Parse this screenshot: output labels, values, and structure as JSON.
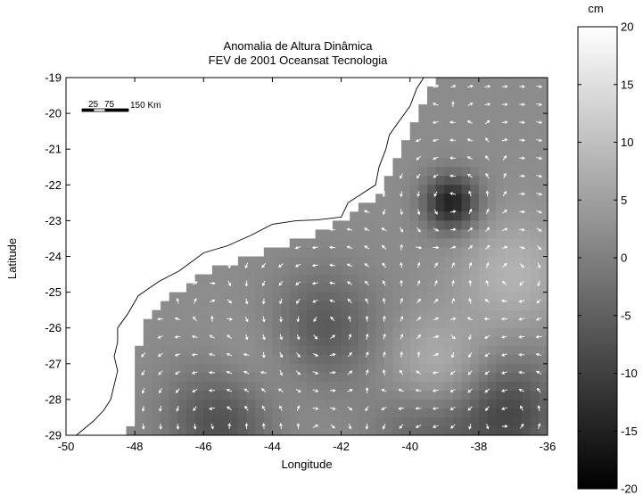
{
  "figure": {
    "title_line1": "Anomalia de Altura Dinâmica",
    "title_line2": "FEV de 2001   Oceansat Tecnologia",
    "xlabel": "Longitude",
    "ylabel": "Latitude",
    "colorbar_unit": "cm",
    "scale_bar_labels": [
      "25",
      "75"
    ],
    "scale_bar_unit_label": "150 Km"
  },
  "chart_data": {
    "type": "heatmap",
    "title": "Anomalia de Altura Dinâmica — FEV de 2001   Oceansat Tecnologia",
    "xlabel": "Longitude",
    "ylabel": "Latitude",
    "xlim": [
      -50,
      -36
    ],
    "ylim": [
      -29,
      -19
    ],
    "x_ticks": [
      -50,
      -48,
      -46,
      -44,
      -42,
      -40,
      -38,
      -36
    ],
    "y_ticks": [
      -19,
      -20,
      -21,
      -22,
      -23,
      -24,
      -25,
      -26,
      -27,
      -28,
      -29
    ],
    "x_tick_labels": [
      "-50",
      "-48",
      "-46",
      "-44",
      "-42",
      "-40",
      "-38",
      "-36"
    ],
    "y_tick_labels": [
      "-19",
      "-20",
      "-21",
      "-22",
      "-23",
      "-24",
      "-25",
      "-26",
      "-27",
      "-28",
      "-29"
    ],
    "colorbar": {
      "label": "cm",
      "range": [
        -20,
        20
      ],
      "ticks": [
        20,
        15,
        10,
        5,
        0,
        -5,
        -10,
        -15,
        -20
      ],
      "tick_labels": [
        "20",
        "15",
        "10",
        "5",
        "0",
        "-5",
        "-10",
        "-15",
        "-20"
      ],
      "colormap": "gray"
    },
    "features": [
      {
        "type": "cyclonic eddy",
        "lon": -38.8,
        "lat": -22.5,
        "value_cm": -17
      },
      {
        "type": "low",
        "lon": -42.5,
        "lat": -26.0,
        "value_cm": -8
      },
      {
        "type": "low",
        "lon": -45.5,
        "lat": -28.6,
        "value_cm": -10
      },
      {
        "type": "low",
        "lon": -39.5,
        "lat": -28.6,
        "value_cm": -9
      },
      {
        "type": "low",
        "lon": -37.2,
        "lat": -28.4,
        "value_cm": -11
      },
      {
        "type": "high",
        "lon": -39.2,
        "lat": -27.5,
        "value_cm": 9
      },
      {
        "type": "high",
        "lon": -37.0,
        "lat": -24.5,
        "value_cm": 6
      },
      {
        "type": "high",
        "lon": -44.5,
        "lat": -27.2,
        "value_cm": 3
      }
    ],
    "coastline": [
      [
        -49.7,
        -29.0
      ],
      [
        -49.2,
        -28.6
      ],
      [
        -48.9,
        -28.3
      ],
      [
        -48.7,
        -28.0
      ],
      [
        -48.6,
        -27.6
      ],
      [
        -48.5,
        -27.2
      ],
      [
        -48.6,
        -26.8
      ],
      [
        -48.5,
        -26.4
      ],
      [
        -48.5,
        -26.0
      ],
      [
        -48.2,
        -25.6
      ],
      [
        -47.9,
        -25.1
      ],
      [
        -47.3,
        -24.7
      ],
      [
        -46.7,
        -24.4
      ],
      [
        -46.0,
        -23.9
      ],
      [
        -45.3,
        -23.7
      ],
      [
        -44.6,
        -23.4
      ],
      [
        -44.0,
        -23.1
      ],
      [
        -43.3,
        -23.0
      ],
      [
        -42.7,
        -22.98
      ],
      [
        -42.0,
        -22.9
      ],
      [
        -41.8,
        -22.5
      ],
      [
        -41.0,
        -22.0
      ],
      [
        -40.9,
        -21.5
      ],
      [
        -40.7,
        -21.0
      ],
      [
        -40.6,
        -20.6
      ],
      [
        -40.3,
        -20.2
      ],
      [
        -40.0,
        -19.8
      ],
      [
        -39.8,
        -19.3
      ],
      [
        -39.6,
        -19.0
      ]
    ],
    "shelf_mask_west_lon_by_lat": [
      [
        -19.0,
        -39.3
      ],
      [
        -20.0,
        -39.7
      ],
      [
        -20.6,
        -40.0
      ],
      [
        -21.2,
        -40.3
      ],
      [
        -21.8,
        -40.6
      ],
      [
        -22.3,
        -41.0
      ],
      [
        -22.7,
        -41.5
      ],
      [
        -23.0,
        -41.9
      ],
      [
        -23.3,
        -42.5
      ],
      [
        -23.6,
        -43.3
      ],
      [
        -23.8,
        -44.0
      ],
      [
        -24.0,
        -44.8
      ],
      [
        -24.3,
        -45.5
      ],
      [
        -24.6,
        -46.2
      ],
      [
        -25.0,
        -46.8
      ],
      [
        -25.4,
        -47.2
      ],
      [
        -25.8,
        -47.6
      ],
      [
        -26.2,
        -47.8
      ],
      [
        -26.6,
        -47.9
      ],
      [
        -27.5,
        -48.0
      ],
      [
        -28.8,
        -48.1
      ],
      [
        -29.0,
        -48.3
      ]
    ]
  }
}
